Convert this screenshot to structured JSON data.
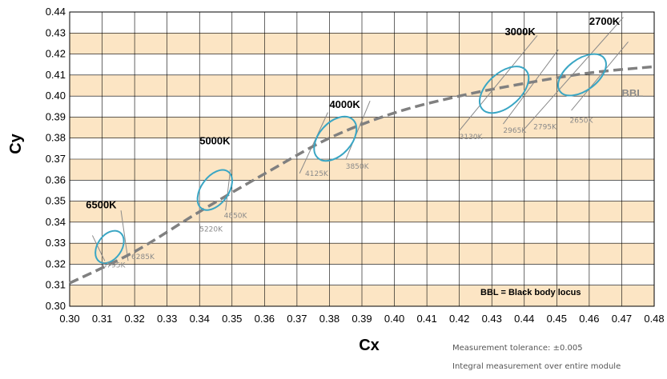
{
  "chart_data": {
    "type": "scatter",
    "xlabel": "Cx",
    "ylabel": "Cy",
    "xlim": [
      0.3,
      0.48
    ],
    "ylim": [
      0.3,
      0.44
    ],
    "x_ticks": [
      "0.30",
      "0.31",
      "0.32",
      "0.33",
      "0.34",
      "0.35",
      "0.36",
      "0.37",
      "0.38",
      "0.39",
      "0.40",
      "0.41",
      "0.42",
      "0.43",
      "0.44",
      "0.45",
      "0.46",
      "0.47",
      "0.48"
    ],
    "y_ticks": [
      "0.30",
      "0.31",
      "0.32",
      "0.33",
      "0.34",
      "0.35",
      "0.36",
      "0.37",
      "0.38",
      "0.39",
      "0.40",
      "0.41",
      "0.42",
      "0.43",
      "0.44"
    ],
    "band_color": "#fce5c4",
    "ellipse_color": "#3aa6c4",
    "bbl_color": "#808080",
    "bbl": {
      "label": "BBL",
      "points": [
        [
          0.3,
          0.311
        ],
        [
          0.32,
          0.326
        ],
        [
          0.34,
          0.345
        ],
        [
          0.36,
          0.363
        ],
        [
          0.38,
          0.38
        ],
        [
          0.4,
          0.392
        ],
        [
          0.42,
          0.4
        ],
        [
          0.44,
          0.406
        ],
        [
          0.46,
          0.411
        ],
        [
          0.48,
          0.414
        ]
      ]
    },
    "ellipses": [
      {
        "label": "6500K",
        "cx": 0.3123,
        "cy": 0.3282,
        "a": 0.0055,
        "b": 0.0037,
        "angle_deg": 55
      },
      {
        "label": "5000K",
        "cx": 0.3447,
        "cy": 0.3553,
        "a": 0.007,
        "b": 0.0042,
        "angle_deg": 54
      },
      {
        "label": "4000K",
        "cx": 0.3818,
        "cy": 0.3797,
        "a": 0.008,
        "b": 0.005,
        "angle_deg": 48
      },
      {
        "label": "3000K",
        "cx": 0.4338,
        "cy": 0.403,
        "a": 0.009,
        "b": 0.0052,
        "angle_deg": 42
      },
      {
        "label": "2700K",
        "cx": 0.4578,
        "cy": 0.4101,
        "a": 0.0085,
        "b": 0.0048,
        "angle_deg": 37
      }
    ],
    "cct_labels": [
      {
        "text": "6500K",
        "x": 0.305,
        "y": 0.3466
      },
      {
        "text": "5000K",
        "x": 0.34,
        "y": 0.3771
      },
      {
        "text": "4000K",
        "x": 0.38,
        "y": 0.3944
      },
      {
        "text": "3000K",
        "x": 0.434,
        "y": 0.4289
      },
      {
        "text": "2700K",
        "x": 0.46,
        "y": 0.434
      }
    ],
    "isotherm_lines": [
      {
        "x1": 0.307,
        "y1": 0.3337,
        "x2": 0.3108,
        "y2": 0.3216
      },
      {
        "x1": 0.3158,
        "y1": 0.3456,
        "x2": 0.318,
        "y2": 0.3216
      },
      {
        "x1": 0.34,
        "y1": 0.3641,
        "x2": 0.34,
        "y2": 0.3391
      },
      {
        "x1": 0.3495,
        "y1": 0.3651,
        "x2": 0.348,
        "y2": 0.3456
      },
      {
        "x1": 0.3708,
        "y1": 0.3632,
        "x2": 0.3795,
        "y2": 0.3922
      },
      {
        "x1": 0.385,
        "y1": 0.3697,
        "x2": 0.3925,
        "y2": 0.3977
      },
      {
        "x1": 0.42,
        "y1": 0.3836,
        "x2": 0.444,
        "y2": 0.4288
      },
      {
        "x1": 0.4335,
        "y1": 0.3867,
        "x2": 0.4505,
        "y2": 0.4221
      },
      {
        "x1": 0.44,
        "y1": 0.3843,
        "x2": 0.4705,
        "y2": 0.4375
      },
      {
        "x1": 0.4545,
        "y1": 0.3932,
        "x2": 0.472,
        "y2": 0.4258
      }
    ],
    "isotherm_labels": [
      {
        "text": "6795K",
        "x": 0.31,
        "y": 0.3185
      },
      {
        "text": "6285K",
        "x": 0.319,
        "y": 0.3224
      },
      {
        "text": "5220K",
        "x": 0.34,
        "y": 0.3355
      },
      {
        "text": "4850K",
        "x": 0.3475,
        "y": 0.342
      },
      {
        "text": "4125K",
        "x": 0.3725,
        "y": 0.3621
      },
      {
        "text": "3850K",
        "x": 0.385,
        "y": 0.3654
      },
      {
        "text": "3130K",
        "x": 0.42,
        "y": 0.3795
      },
      {
        "text": "2965K",
        "x": 0.4335,
        "y": 0.3826
      },
      {
        "text": "2795K",
        "x": 0.4428,
        "y": 0.3843
      },
      {
        "text": "2650K",
        "x": 0.454,
        "y": 0.3874
      }
    ],
    "bbl_label_pos": {
      "x": 0.47,
      "y": 0.3996
    },
    "legend_text": "BBL = Black body locus",
    "legend_pos": {
      "x": 0.4265,
      "y": 0.3054
    }
  },
  "notes": {
    "tolerance": "Measurement tolerance: ±0.005",
    "integral": "Integral measurement over entire module"
  }
}
